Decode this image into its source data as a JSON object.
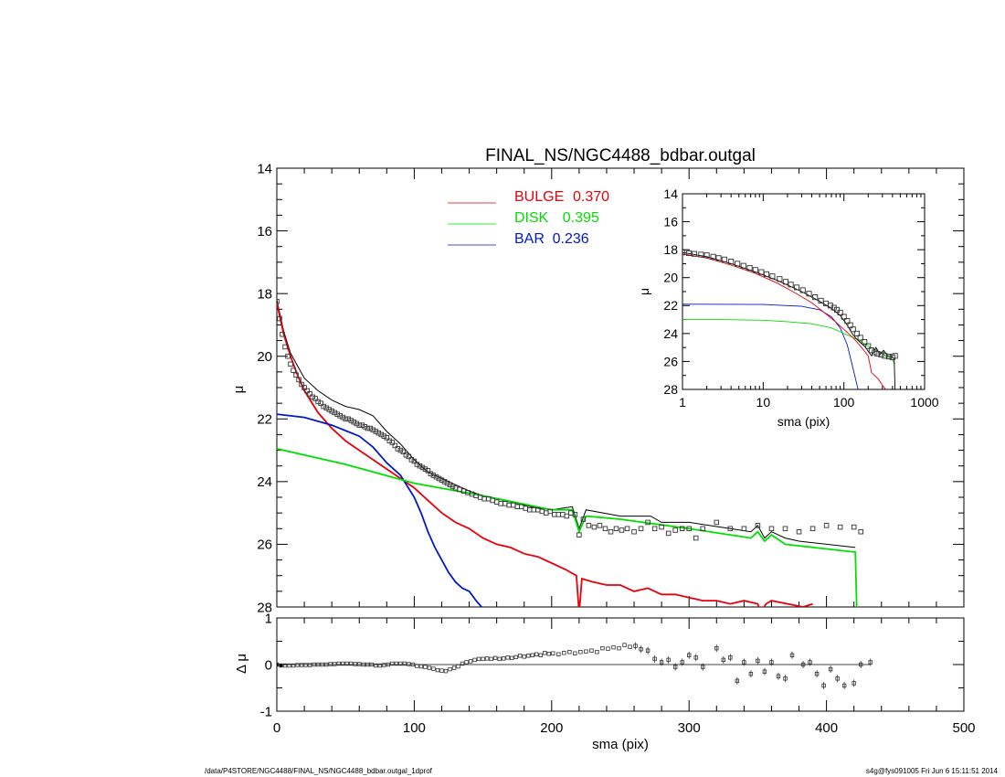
{
  "footer": {
    "left": "/data/P4STORE/NGC4488/FINAL_NS/NGC4488_bdbar.outgal_1dprof",
    "right": "s4g@fys091005  Fri Jun  6 15:11:51 2014"
  },
  "colors": {
    "bulge": "#e8000b",
    "disk": "#00e000",
    "bar": "#0018c8",
    "total": "#000000",
    "data": "#404040"
  },
  "chart_data": [
    {
      "panel": "main",
      "type": "line",
      "title": "FINAL_NS/NGC4488_bdbar.outgal",
      "xlabel": "",
      "ylabel": "μ",
      "xlim": [
        0,
        500
      ],
      "ylim": [
        28,
        14
      ],
      "y_inverted": true,
      "xticks": [
        0,
        100,
        200,
        300,
        400,
        500
      ],
      "yticks": [
        14,
        16,
        18,
        20,
        22,
        24,
        26,
        28
      ],
      "legend": {
        "placement": "top-center",
        "entries": [
          {
            "name": "BULGE",
            "value": "0.370",
            "color": "#e8000b"
          },
          {
            "name": "DISK",
            "value": "0.395",
            "color": "#00e000"
          },
          {
            "name": "BAR",
            "value": "0.236",
            "color": "#0018c8"
          }
        ]
      },
      "series": [
        {
          "name": "BULGE",
          "color": "#e8000b",
          "x": [
            0,
            5,
            10,
            15,
            20,
            30,
            40,
            50,
            60,
            70,
            80,
            90,
            100,
            110,
            120,
            130,
            140,
            150,
            160,
            170,
            180,
            190,
            200,
            210,
            218,
            220,
            222,
            230,
            240,
            250,
            260,
            270,
            280,
            290,
            300,
            310,
            320,
            330,
            340,
            350,
            352,
            356,
            360,
            383,
            390
          ],
          "y": [
            18.3,
            19.3,
            20.0,
            20.6,
            21.1,
            21.8,
            22.3,
            22.7,
            23.0,
            23.3,
            23.6,
            23.9,
            24.2,
            24.6,
            25.0,
            25.3,
            25.5,
            25.8,
            26.0,
            26.1,
            26.3,
            26.4,
            26.6,
            26.8,
            27.0,
            28.2,
            27.1,
            27.2,
            27.3,
            27.3,
            27.5,
            27.4,
            27.6,
            27.6,
            27.7,
            27.8,
            27.8,
            27.9,
            27.8,
            27.9,
            28.2,
            27.9,
            27.8,
            28.0,
            27.9
          ]
        },
        {
          "name": "DISK",
          "color": "#00e000",
          "x": [
            0,
            50,
            100,
            150,
            200,
            215,
            220,
            225,
            250,
            300,
            330,
            345,
            350,
            355,
            360,
            370,
            380,
            421,
            422
          ],
          "y": [
            22.95,
            23.45,
            24.05,
            24.45,
            24.9,
            24.9,
            25.6,
            25.1,
            25.2,
            25.5,
            25.7,
            25.8,
            25.6,
            25.9,
            25.7,
            26.0,
            26.05,
            26.25,
            28.0
          ]
        },
        {
          "name": "BAR",
          "color": "#0018c8",
          "x": [
            0,
            20,
            40,
            60,
            70,
            80,
            90,
            100,
            105,
            110,
            115,
            120,
            125,
            130,
            135,
            140,
            145,
            149
          ],
          "y": [
            21.85,
            21.95,
            22.2,
            22.55,
            22.9,
            23.4,
            23.8,
            24.5,
            25.0,
            25.6,
            26.1,
            26.5,
            26.9,
            27.2,
            27.4,
            27.5,
            27.8,
            28.0
          ]
        },
        {
          "name": "Total",
          "color": "#000000",
          "x": [
            0,
            5,
            10,
            20,
            30,
            40,
            50,
            60,
            70,
            80,
            90,
            100,
            110,
            120,
            130,
            140,
            150,
            160,
            170,
            180,
            190,
            200,
            215,
            220,
            225,
            250,
            272,
            280,
            300,
            330,
            345,
            350,
            355,
            360,
            370,
            380,
            421
          ],
          "y": [
            18.2,
            19.2,
            19.9,
            20.7,
            21.1,
            21.4,
            21.6,
            21.7,
            21.9,
            22.4,
            22.8,
            23.3,
            23.7,
            23.9,
            24.1,
            24.3,
            24.45,
            24.55,
            24.65,
            24.75,
            24.85,
            24.9,
            24.8,
            25.5,
            24.9,
            25.1,
            25.1,
            25.3,
            25.3,
            25.5,
            25.6,
            25.4,
            25.8,
            25.6,
            25.8,
            25.9,
            26.1
          ]
        }
      ],
      "points": {
        "name": "data",
        "x": [
          0,
          2,
          4,
          6,
          8,
          10,
          12,
          14,
          16,
          18,
          20,
          22,
          24,
          26,
          28,
          30,
          32,
          34,
          36,
          38,
          40,
          42,
          44,
          46,
          48,
          50,
          52,
          54,
          56,
          58,
          60,
          62,
          64,
          66,
          68,
          70,
          72,
          74,
          76,
          78,
          80,
          82,
          84,
          86,
          88,
          90,
          92,
          94,
          96,
          98,
          100,
          102,
          104,
          106,
          108,
          110,
          112,
          114,
          116,
          118,
          120,
          122,
          124,
          126,
          128,
          130,
          133,
          136,
          139,
          142,
          145,
          148,
          151,
          154,
          157,
          160,
          163,
          166,
          169,
          172,
          175,
          178,
          181,
          184,
          187,
          190,
          193,
          196,
          199,
          202,
          205,
          208,
          211,
          214,
          217,
          220,
          223,
          227,
          231,
          235,
          239,
          243,
          247,
          251,
          255,
          260,
          265,
          270,
          275,
          280,
          285,
          290,
          295,
          300,
          305,
          310,
          320,
          330,
          340,
          350,
          360,
          370,
          380,
          390,
          400,
          410,
          420,
          425
        ],
        "y": [
          18.25,
          18.8,
          19.3,
          19.7,
          20.0,
          20.25,
          20.45,
          20.6,
          20.75,
          20.9,
          21.0,
          21.1,
          21.2,
          21.3,
          21.35,
          21.45,
          21.5,
          21.6,
          21.65,
          21.7,
          21.75,
          21.8,
          21.85,
          21.9,
          21.95,
          22.0,
          22.0,
          22.05,
          22.1,
          22.15,
          22.2,
          22.2,
          22.25,
          22.3,
          22.3,
          22.35,
          22.4,
          22.45,
          22.5,
          22.55,
          22.6,
          22.7,
          22.75,
          22.85,
          22.95,
          23.0,
          23.05,
          23.15,
          23.2,
          23.3,
          23.35,
          23.45,
          23.5,
          23.55,
          23.6,
          23.65,
          23.75,
          23.8,
          23.85,
          23.9,
          23.95,
          24.0,
          24.05,
          24.1,
          24.15,
          24.2,
          24.25,
          24.3,
          24.35,
          24.4,
          24.45,
          24.5,
          24.55,
          24.55,
          24.6,
          24.65,
          24.7,
          24.7,
          24.75,
          24.75,
          24.8,
          24.8,
          24.85,
          24.9,
          24.9,
          24.9,
          24.95,
          25.0,
          24.95,
          25.05,
          25.05,
          25.05,
          25.1,
          25.0,
          25.05,
          25.7,
          25.2,
          25.4,
          25.45,
          25.4,
          25.5,
          25.6,
          25.5,
          25.55,
          25.5,
          25.6,
          25.5,
          25.3,
          25.5,
          25.45,
          25.65,
          25.55,
          25.5,
          25.5,
          25.8,
          25.5,
          25.3,
          25.5,
          25.5,
          25.4,
          25.5,
          25.5,
          25.6,
          25.5,
          25.4,
          25.45,
          25.45,
          25.6
        ]
      }
    },
    {
      "panel": "residual",
      "type": "scatter",
      "xlabel": "sma (pix)",
      "ylabel": "Δ μ",
      "xlim": [
        0,
        500
      ],
      "ylim": [
        -1,
        1
      ],
      "xticks": [
        0,
        100,
        200,
        300,
        400,
        500
      ],
      "yticks": [
        -1,
        0,
        1
      ],
      "x": [
        0,
        3,
        6,
        9,
        12,
        15,
        18,
        21,
        24,
        27,
        30,
        33,
        36,
        39,
        42,
        45,
        48,
        51,
        54,
        57,
        60,
        63,
        66,
        69,
        72,
        75,
        78,
        81,
        84,
        87,
        90,
        93,
        96,
        99,
        102,
        105,
        108,
        111,
        114,
        117,
        120,
        123,
        126,
        129,
        132,
        135,
        138,
        141,
        144,
        147,
        150,
        153,
        156,
        159,
        162,
        165,
        168,
        171,
        174,
        177,
        180,
        183,
        186,
        189,
        192,
        195,
        198,
        201,
        205,
        209,
        213,
        217,
        221,
        225,
        229,
        233,
        237,
        241,
        245,
        249,
        253,
        257,
        261,
        265,
        270,
        275,
        280,
        285,
        290,
        295,
        300,
        305,
        310,
        320,
        325,
        330,
        335,
        340,
        345,
        350,
        355,
        360,
        365,
        370,
        375,
        383,
        388,
        393,
        398,
        403,
        408,
        413,
        420,
        425,
        432
      ],
      "y": [
        0.0,
        -0.02,
        -0.02,
        -0.02,
        -0.02,
        -0.01,
        -0.01,
        -0.01,
        -0.01,
        0.0,
        0.0,
        0.0,
        0.0,
        0.01,
        0.01,
        0.02,
        0.02,
        0.02,
        0.02,
        0.01,
        0.01,
        0.0,
        0.0,
        0.0,
        -0.02,
        -0.02,
        -0.01,
        0.0,
        0.02,
        0.02,
        0.02,
        0.02,
        0.01,
        0.0,
        -0.03,
        -0.04,
        -0.05,
        -0.07,
        -0.09,
        -0.12,
        -0.13,
        -0.14,
        -0.1,
        -0.07,
        -0.04,
        0.02,
        0.05,
        0.07,
        0.1,
        0.12,
        0.12,
        0.13,
        0.12,
        0.14,
        0.12,
        0.13,
        0.15,
        0.14,
        0.16,
        0.19,
        0.17,
        0.19,
        0.2,
        0.22,
        0.2,
        0.25,
        0.23,
        0.24,
        0.22,
        0.25,
        0.27,
        0.24,
        0.27,
        0.28,
        0.3,
        0.27,
        0.35,
        0.34,
        0.37,
        0.35,
        0.42,
        0.38,
        0.4,
        0.33,
        0.3,
        0.12,
        0.05,
        0.1,
        -0.05,
        0.05,
        0.2,
        0.15,
        -0.05,
        0.35,
        0.1,
        0.15,
        -0.35,
        0.05,
        -0.2,
        0.08,
        -0.15,
        0.05,
        -0.25,
        -0.3,
        0.2,
        0.0,
        0.05,
        -0.2,
        -0.45,
        -0.1,
        -0.3,
        -0.45,
        -0.4,
        0.0,
        0.05
      ]
    },
    {
      "panel": "inset",
      "type": "line",
      "xlabel": "sma (pix)",
      "ylabel": "μ",
      "xscale": "log",
      "xlim": [
        1,
        1000
      ],
      "ylim": [
        28,
        14
      ],
      "y_inverted": true,
      "xticks": [
        1,
        10,
        100,
        1000
      ],
      "yticks": [
        14,
        16,
        18,
        20,
        22,
        24,
        26,
        28
      ],
      "series": [
        {
          "name": "BULGE",
          "color": "#e8000b",
          "x": [
            1,
            2,
            4,
            8,
            15,
            25,
            40,
            60,
            80,
            100,
            130,
            160,
            200,
            210,
            220,
            240,
            270,
            300,
            330
          ],
          "y": [
            18.3,
            18.6,
            19.1,
            19.7,
            20.4,
            21.1,
            21.8,
            22.6,
            23.2,
            23.7,
            24.3,
            24.9,
            25.6,
            26.2,
            26.8,
            27.0,
            27.3,
            27.7,
            28.0
          ]
        },
        {
          "name": "DISK",
          "color": "#00e000",
          "x": [
            1,
            3,
            10,
            20,
            40,
            70,
            100,
            150,
            200,
            300,
            400,
            430
          ],
          "y": [
            23.0,
            23.0,
            23.05,
            23.15,
            23.3,
            23.6,
            24.0,
            24.45,
            24.9,
            25.45,
            25.9,
            26.2
          ]
        },
        {
          "name": "BAR",
          "color": "#0018c8",
          "x": [
            1,
            10,
            30,
            50,
            70,
            90,
            110,
            130,
            140,
            150
          ],
          "y": [
            21.9,
            21.92,
            22.05,
            22.3,
            22.8,
            23.6,
            24.8,
            26.5,
            27.3,
            28.0
          ]
        },
        {
          "name": "Total",
          "color": "#000000",
          "x": [
            1,
            2,
            4,
            8,
            15,
            30,
            50,
            70,
            90,
            110,
            130,
            150,
            180,
            220,
            250,
            280,
            310,
            350,
            400,
            420,
            430
          ],
          "y": [
            18.2,
            18.5,
            19.0,
            19.6,
            20.2,
            21.0,
            21.7,
            22.2,
            22.7,
            23.4,
            24.1,
            24.5,
            24.9,
            25.6,
            25.0,
            25.5,
            25.2,
            25.6,
            25.7,
            25.8,
            28.0
          ]
        }
      ],
      "points": {
        "name": "data",
        "x": [
          1,
          1.2,
          1.4,
          1.7,
          2,
          2.4,
          2.8,
          3.3,
          4,
          4.8,
          5.7,
          6.8,
          8,
          9.5,
          11,
          13,
          16,
          19,
          22,
          26,
          31,
          37,
          44,
          52,
          60,
          68,
          75,
          82,
          90,
          100,
          110,
          120,
          130,
          145,
          160,
          180,
          200,
          220,
          240,
          260,
          290,
          320,
          360,
          400,
          430
        ],
        "y": [
          18.2,
          18.25,
          18.3,
          18.35,
          18.4,
          18.5,
          18.6,
          18.7,
          18.85,
          19.0,
          19.15,
          19.3,
          19.45,
          19.6,
          19.75,
          19.9,
          20.1,
          20.3,
          20.5,
          20.7,
          20.9,
          21.15,
          21.4,
          21.65,
          21.85,
          22.0,
          22.15,
          22.3,
          22.5,
          22.8,
          23.1,
          23.4,
          23.7,
          24.0,
          24.3,
          24.6,
          24.9,
          25.2,
          25.35,
          25.45,
          25.5,
          25.6,
          25.65,
          25.7,
          25.6
        ]
      }
    }
  ]
}
